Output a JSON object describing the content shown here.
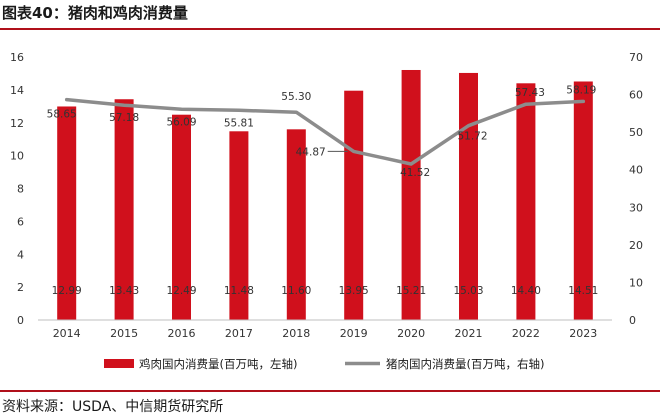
{
  "page": {
    "title": "图表40：猪肉和鸡肉消费量",
    "source": "资料来源：USDA、中信期货研究所"
  },
  "colors": {
    "bar": "#d0101c",
    "line": "#8c8c8c",
    "rule": "#b0101a"
  },
  "chart_data": {
    "type": "bar",
    "categories": [
      "2014",
      "2015",
      "2016",
      "2017",
      "2018",
      "2019",
      "2020",
      "2021",
      "2022",
      "2023"
    ],
    "series": [
      {
        "name": "鸡肉国内消费量(百万吨，左轴)",
        "type": "bar",
        "axis": "left",
        "values": [
          12.99,
          13.43,
          12.49,
          11.48,
          11.6,
          13.95,
          15.21,
          15.03,
          14.4,
          14.51
        ],
        "labels": [
          "12.99",
          "13.43",
          "12.49",
          "11.48",
          "11.60",
          "13.95",
          "15.21",
          "15.03",
          "14.40",
          "14.51"
        ]
      },
      {
        "name": "猪肉国内消费量(百万吨，右轴)",
        "type": "line",
        "axis": "right",
        "values": [
          58.65,
          57.18,
          56.09,
          55.81,
          55.3,
          44.87,
          41.52,
          51.72,
          57.43,
          58.19
        ],
        "labels": [
          "58.65",
          "57.18",
          "56.09",
          "55.81",
          "55.30",
          "44.87",
          "41.52",
          "51.72",
          "57.43",
          "58.19"
        ]
      }
    ],
    "yleft": {
      "lim": [
        0,
        16
      ],
      "ticks": [
        "0",
        "2",
        "4",
        "6",
        "8",
        "10",
        "12",
        "14",
        "16"
      ]
    },
    "yright": {
      "lim": [
        0,
        70
      ],
      "ticks": [
        "0",
        "10",
        "20",
        "30",
        "40",
        "50",
        "60",
        "70"
      ]
    },
    "legend": "bottom",
    "grid": false
  }
}
